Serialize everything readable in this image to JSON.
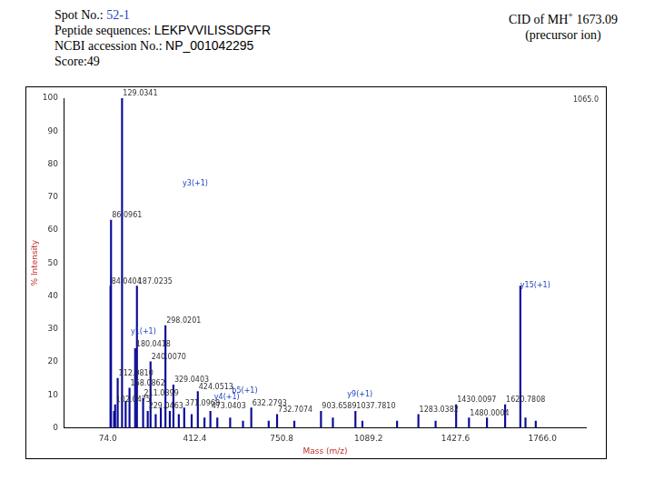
{
  "header": {
    "spot_label": "Spot No.:",
    "spot": "52-1",
    "peptide_label": "Peptide sequences:",
    "peptide": "LEKPVVILISSDGFR",
    "accession_label": "NCBI accession No.:",
    "accession": "NP_001042295",
    "score": "Score:49",
    "precursor": {
      "prefix": "CID of MH",
      "sup": "+",
      "suffix": " 1673.09",
      "note": "(precursor ion)"
    }
  },
  "chart_data": {
    "type": "bar",
    "x_label": "Mass (m/z)",
    "y_label": "% Intensity",
    "color": "#0a0a96",
    "grid": false,
    "corner_text": "1065.0",
    "xlim": [
      74.0,
      1766.0
    ],
    "xticks": [
      {
        "value": 74.0,
        "label": "74.0"
      },
      {
        "value": 412.4,
        "label": "412.4"
      },
      {
        "value": 750.8,
        "label": "750.8"
      },
      {
        "value": 1089.2,
        "label": "1089.2"
      },
      {
        "value": 1427.6,
        "label": "1427.6"
      },
      {
        "value": 1766.0,
        "label": "1766.0"
      }
    ],
    "ylim": [
      0,
      100
    ],
    "yticks": [
      0,
      10,
      20,
      30,
      40,
      50,
      60,
      70,
      80,
      90,
      100
    ],
    "x": [
      84.0404,
      86.0961,
      98,
      102.0475,
      112.081,
      129.0341,
      143,
      158.0862,
      180.0418,
      187.0235,
      211.0399,
      229.0463,
      240.007,
      260,
      280,
      298.0201,
      315,
      329.0403,
      350,
      371.0968,
      400,
      424.0513,
      450,
      473.0403,
      500,
      550,
      600,
      632.2793,
      700,
      732.7074,
      800,
      903.6589,
      950,
      1037.781,
      1065,
      1200,
      1283.0382,
      1350,
      1430.0097,
      1480.0004,
      1550,
      1620.7808,
      1680,
      1700,
      1740
    ],
    "values": [
      43,
      63,
      5,
      7,
      15,
      100,
      8,
      12,
      24,
      43,
      9,
      5,
      20,
      4,
      6,
      31,
      5,
      13,
      4,
      6,
      4,
      11,
      3,
      5,
      3,
      3,
      2,
      6,
      2,
      4,
      2,
      5,
      3,
      5,
      2,
      2,
      4,
      2,
      7,
      3,
      3,
      7,
      43,
      3,
      2
    ],
    "peak_labels": [
      "84.0404",
      "86.0961",
      null,
      "102.0475",
      "112.0810",
      "129.0341",
      null,
      "158.0862",
      "180.0418",
      "187.0235",
      "211.0399",
      "229.0463",
      "240.0070",
      null,
      null,
      "298.0201",
      null,
      "329.0403",
      null,
      "371.0968",
      null,
      "424.0513",
      null,
      "473.0403",
      null,
      null,
      null,
      "632.2793",
      null,
      "732.7074",
      null,
      "903.6589",
      null,
      "1037.7810",
      null,
      null,
      "1283.0382",
      null,
      "1430.0097",
      "1480.0004",
      null,
      "1620.7808",
      null,
      null,
      null
    ],
    "annotations": [
      {
        "text": "y3(+1)",
        "x": 365,
        "y": 73
      },
      {
        "text": "y1(+1)",
        "x": 163,
        "y": 28
      },
      {
        "text": "y4(+1)",
        "x": 488,
        "y": 8
      },
      {
        "text": "b5(+1)",
        "x": 557,
        "y": 10
      },
      {
        "text": "y9(+1)",
        "x": 1006,
        "y": 9
      },
      {
        "text": "y15(+1)",
        "x": 1680,
        "y": 42
      }
    ]
  }
}
